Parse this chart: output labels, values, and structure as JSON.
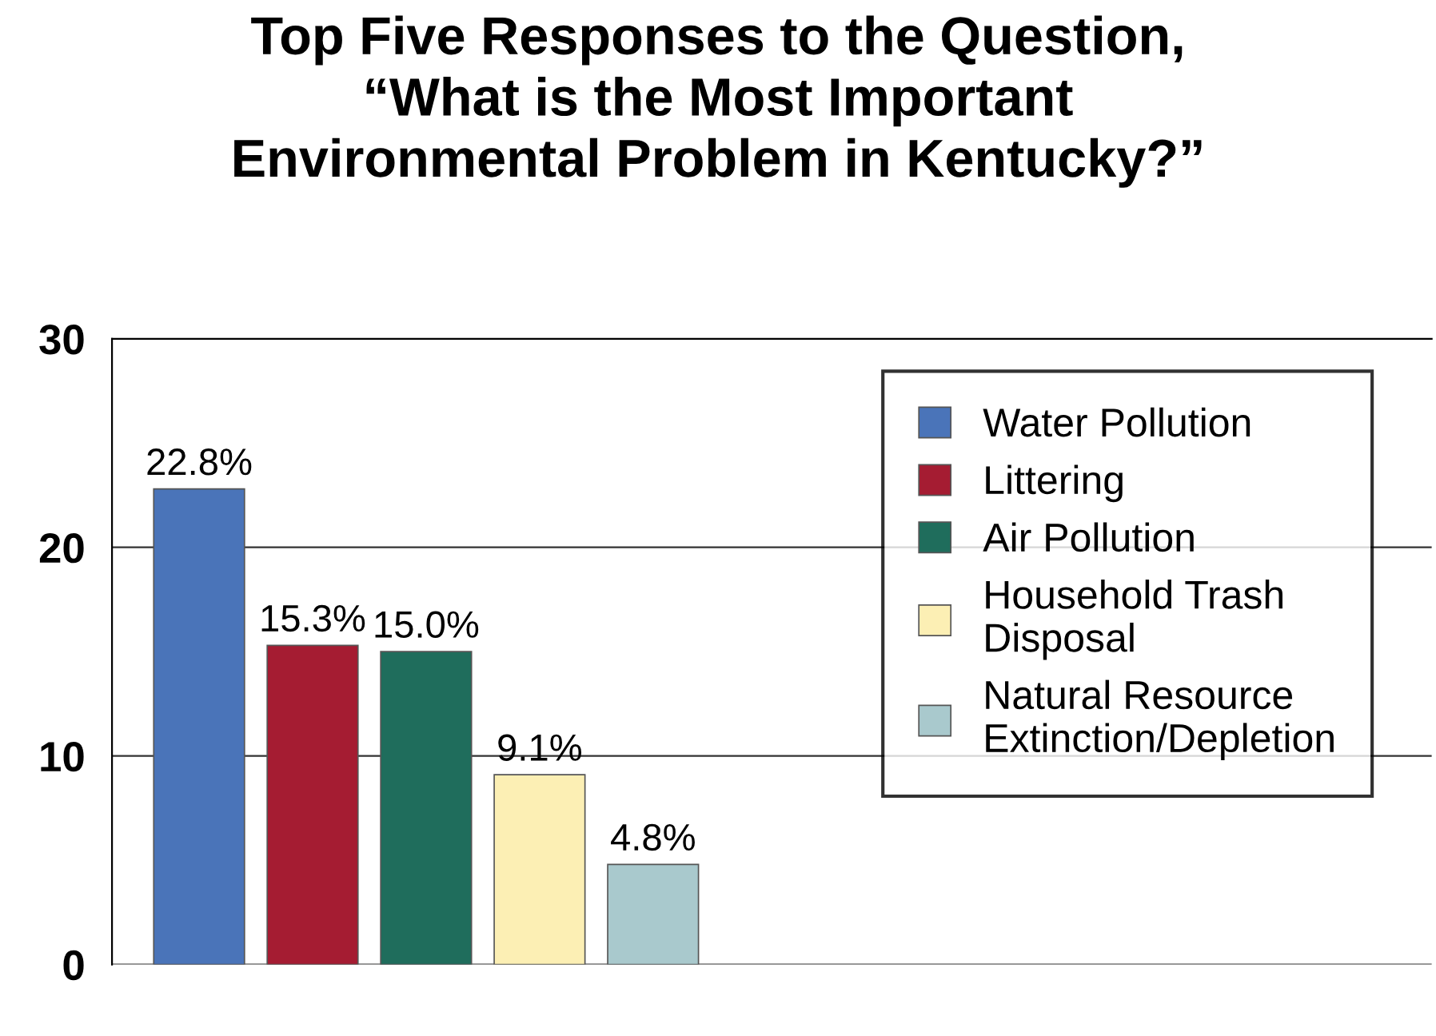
{
  "chart_data": {
    "type": "bar",
    "title": "Top Five Responses to the Question,\n“What is the Most Important\nEnvironmental Problem in Kentucky?”",
    "categories": [
      null
    ],
    "series": [
      {
        "name": "Water Pollution",
        "color": "#4a74b9",
        "values": [
          22.8
        ],
        "value_labels": [
          "22.8%"
        ]
      },
      {
        "name": "Littering",
        "color": "#a51c32",
        "values": [
          15.3
        ],
        "value_labels": [
          "15.3%"
        ]
      },
      {
        "name": "Air Pollution",
        "color": "#1f6d5c",
        "values": [
          15.0
        ],
        "value_labels": [
          "15.0%"
        ]
      },
      {
        "name": "Household Trash Disposal",
        "color": "#fcefb4",
        "values": [
          9.1
        ],
        "value_labels": [
          "9.1%"
        ]
      },
      {
        "name": "Natural Resource Extinction/Depletion",
        "color": "#a9c9cd",
        "values": [
          4.8
        ],
        "value_labels": [
          "4.8%"
        ]
      }
    ],
    "ylim": [
      0,
      30
    ],
    "yticks": [
      0,
      10,
      20,
      30
    ],
    "grid": "y",
    "legend": "top right"
  }
}
